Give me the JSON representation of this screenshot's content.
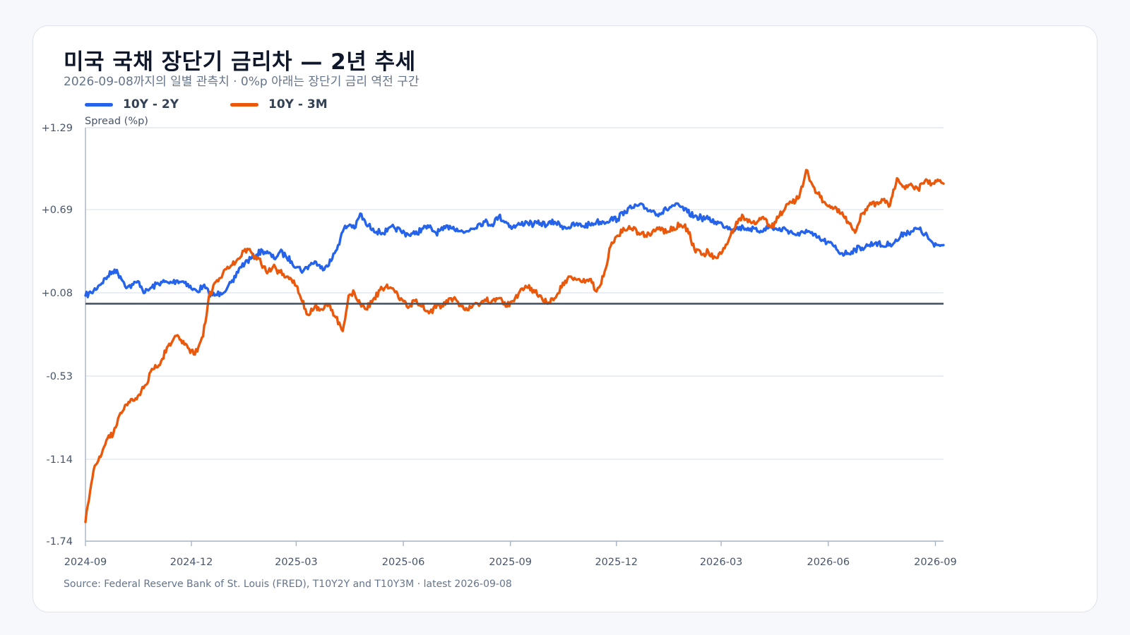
{
  "header": {
    "title": "미국 국채 장단기 금리차 — 2년 추세",
    "subtitle": "2026-09-08까지의 일별 관측치 · 0%p 아래는 장단기 금리 역전 구간"
  },
  "source": "Source: Federal Reserve Bank of St. Louis (FRED), T10Y2Y and T10Y3M · latest 2026-09-08",
  "colors": {
    "series_10y2y": "#2563eb",
    "series_10y3m": "#ea580c",
    "zero_line": "#475569",
    "grid": "#dbe3ee",
    "axis": "#a8b4c4"
  },
  "chart_data": {
    "type": "line",
    "ylabel": "Spread (%p)",
    "xlabel": "",
    "ylim": [
      -1.74,
      1.29
    ],
    "yticks": [
      "+1.29",
      "+0.69",
      "+0.08",
      "-0.53",
      "-1.14",
      "-1.74"
    ],
    "ytick_values": [
      1.29,
      0.69,
      0.08,
      -0.53,
      -1.14,
      -1.74
    ],
    "xlim": [
      "2024-09-01",
      "2026-09-08"
    ],
    "xticks": [
      "2024-09",
      "2024-12",
      "2025-03",
      "2025-06",
      "2025-09",
      "2025-12",
      "2026-03",
      "2026-06",
      "2026-09"
    ],
    "xtick_dates": [
      "2024-09-01",
      "2024-12-01",
      "2025-03-01",
      "2025-06-01",
      "2025-09-01",
      "2025-12-01",
      "2026-03-01",
      "2026-06-01",
      "2026-09-01"
    ],
    "reference_line": 0,
    "grid": "horizontal",
    "legend_position": "top-left",
    "series": [
      {
        "name": "10Y - 2Y",
        "points": [
          [
            "2024-09-01",
            0.06
          ],
          [
            "2024-09-06",
            0.08
          ],
          [
            "2024-09-12",
            0.13
          ],
          [
            "2024-09-20",
            0.2
          ],
          [
            "2024-09-26",
            0.25
          ],
          [
            "2024-10-01",
            0.2
          ],
          [
            "2024-10-07",
            0.12
          ],
          [
            "2024-10-12",
            0.14
          ],
          [
            "2024-10-17",
            0.16
          ],
          [
            "2024-10-22",
            0.08
          ],
          [
            "2024-10-28",
            0.12
          ],
          [
            "2024-11-05",
            0.16
          ],
          [
            "2024-11-12",
            0.15
          ],
          [
            "2024-11-19",
            0.17
          ],
          [
            "2024-11-26",
            0.16
          ],
          [
            "2024-12-01",
            0.11
          ],
          [
            "2024-12-06",
            0.09
          ],
          [
            "2024-12-11",
            0.13
          ],
          [
            "2024-12-16",
            0.08
          ],
          [
            "2024-12-21",
            0.06
          ],
          [
            "2024-12-26",
            0.08
          ],
          [
            "2025-01-01",
            0.12
          ],
          [
            "2025-01-06",
            0.16
          ],
          [
            "2025-01-11",
            0.26
          ],
          [
            "2025-01-16",
            0.3
          ],
          [
            "2025-01-21",
            0.33
          ],
          [
            "2025-01-26",
            0.36
          ],
          [
            "2025-01-31",
            0.39
          ],
          [
            "2025-02-05",
            0.37
          ],
          [
            "2025-02-10",
            0.33
          ],
          [
            "2025-02-15",
            0.38
          ],
          [
            "2025-02-20",
            0.35
          ],
          [
            "2025-02-25",
            0.31
          ],
          [
            "2025-03-02",
            0.27
          ],
          [
            "2025-03-07",
            0.24
          ],
          [
            "2025-03-12",
            0.28
          ],
          [
            "2025-03-17",
            0.31
          ],
          [
            "2025-03-22",
            0.26
          ],
          [
            "2025-03-27",
            0.28
          ],
          [
            "2025-04-01",
            0.33
          ],
          [
            "2025-04-06",
            0.43
          ],
          [
            "2025-04-11",
            0.55
          ],
          [
            "2025-04-16",
            0.58
          ],
          [
            "2025-04-21",
            0.56
          ],
          [
            "2025-04-25",
            0.66
          ],
          [
            "2025-04-30",
            0.58
          ],
          [
            "2025-05-06",
            0.55
          ],
          [
            "2025-05-12",
            0.52
          ],
          [
            "2025-05-18",
            0.53
          ],
          [
            "2025-05-24",
            0.56
          ],
          [
            "2025-05-30",
            0.53
          ],
          [
            "2025-06-05",
            0.51
          ],
          [
            "2025-06-11",
            0.51
          ],
          [
            "2025-06-17",
            0.55
          ],
          [
            "2025-06-23",
            0.56
          ],
          [
            "2025-06-29",
            0.52
          ],
          [
            "2025-07-05",
            0.54
          ],
          [
            "2025-07-11",
            0.57
          ],
          [
            "2025-07-17",
            0.55
          ],
          [
            "2025-07-23",
            0.52
          ],
          [
            "2025-07-29",
            0.55
          ],
          [
            "2025-08-04",
            0.58
          ],
          [
            "2025-08-10",
            0.6
          ],
          [
            "2025-08-16",
            0.58
          ],
          [
            "2025-08-22",
            0.64
          ],
          [
            "2025-08-28",
            0.6
          ],
          [
            "2025-09-03",
            0.56
          ],
          [
            "2025-09-09",
            0.58
          ],
          [
            "2025-09-15",
            0.6
          ],
          [
            "2025-09-21",
            0.58
          ],
          [
            "2025-09-27",
            0.59
          ],
          [
            "2025-10-03",
            0.58
          ],
          [
            "2025-10-09",
            0.6
          ],
          [
            "2025-10-15",
            0.57
          ],
          [
            "2025-10-21",
            0.56
          ],
          [
            "2025-10-27",
            0.58
          ],
          [
            "2025-11-02",
            0.57
          ],
          [
            "2025-11-08",
            0.58
          ],
          [
            "2025-11-14",
            0.6
          ],
          [
            "2025-11-20",
            0.6
          ],
          [
            "2025-11-26",
            0.62
          ],
          [
            "2025-12-02",
            0.62
          ],
          [
            "2025-12-08",
            0.68
          ],
          [
            "2025-12-14",
            0.7
          ],
          [
            "2025-12-20",
            0.72
          ],
          [
            "2025-12-26",
            0.7
          ],
          [
            "2026-01-01",
            0.68
          ],
          [
            "2026-01-07",
            0.66
          ],
          [
            "2026-01-13",
            0.69
          ],
          [
            "2026-01-19",
            0.72
          ],
          [
            "2026-01-25",
            0.71
          ],
          [
            "2026-01-31",
            0.67
          ],
          [
            "2026-02-06",
            0.64
          ],
          [
            "2026-02-12",
            0.63
          ],
          [
            "2026-02-18",
            0.62
          ],
          [
            "2026-02-24",
            0.6
          ],
          [
            "2026-03-02",
            0.58
          ],
          [
            "2026-03-08",
            0.56
          ],
          [
            "2026-03-14",
            0.55
          ],
          [
            "2026-03-20",
            0.56
          ],
          [
            "2026-03-26",
            0.55
          ],
          [
            "2026-04-01",
            0.53
          ],
          [
            "2026-04-07",
            0.55
          ],
          [
            "2026-04-13",
            0.56
          ],
          [
            "2026-04-19",
            0.54
          ],
          [
            "2026-04-25",
            0.55
          ],
          [
            "2026-05-01",
            0.52
          ],
          [
            "2026-05-07",
            0.5
          ],
          [
            "2026-05-13",
            0.54
          ],
          [
            "2026-05-19",
            0.5
          ],
          [
            "2026-05-25",
            0.47
          ],
          [
            "2026-05-31",
            0.45
          ],
          [
            "2026-06-06",
            0.42
          ],
          [
            "2026-06-12",
            0.37
          ],
          [
            "2026-06-18",
            0.37
          ],
          [
            "2026-06-24",
            0.4
          ],
          [
            "2026-06-30",
            0.41
          ],
          [
            "2026-07-06",
            0.43
          ],
          [
            "2026-07-12",
            0.45
          ],
          [
            "2026-07-18",
            0.42
          ],
          [
            "2026-07-24",
            0.44
          ],
          [
            "2026-07-30",
            0.46
          ],
          [
            "2026-08-05",
            0.52
          ],
          [
            "2026-08-11",
            0.53
          ],
          [
            "2026-08-17",
            0.55
          ],
          [
            "2026-08-23",
            0.51
          ],
          [
            "2026-08-27",
            0.47
          ],
          [
            "2026-08-31",
            0.42
          ],
          [
            "2026-09-04",
            0.43
          ],
          [
            "2026-09-08",
            0.43
          ]
        ]
      },
      {
        "name": "10Y - 3M",
        "points": [
          [
            "2024-09-01",
            -1.6
          ],
          [
            "2024-09-04",
            -1.44
          ],
          [
            "2024-09-08",
            -1.22
          ],
          [
            "2024-09-13",
            -1.12
          ],
          [
            "2024-09-19",
            -1.0
          ],
          [
            "2024-09-25",
            -0.95
          ],
          [
            "2024-10-01",
            -0.8
          ],
          [
            "2024-10-08",
            -0.72
          ],
          [
            "2024-10-15",
            -0.7
          ],
          [
            "2024-10-22",
            -0.6
          ],
          [
            "2024-10-29",
            -0.48
          ],
          [
            "2024-11-05",
            -0.42
          ],
          [
            "2024-11-10",
            -0.32
          ],
          [
            "2024-11-15",
            -0.27
          ],
          [
            "2024-11-20",
            -0.24
          ],
          [
            "2024-11-25",
            -0.3
          ],
          [
            "2024-11-30",
            -0.36
          ],
          [
            "2024-12-06",
            -0.35
          ],
          [
            "2024-12-11",
            -0.24
          ],
          [
            "2024-12-16",
            0.05
          ],
          [
            "2024-12-22",
            0.16
          ],
          [
            "2024-12-28",
            0.22
          ],
          [
            "2025-01-04",
            0.28
          ],
          [
            "2025-01-10",
            0.33
          ],
          [
            "2025-01-16",
            0.4
          ],
          [
            "2025-01-22",
            0.37
          ],
          [
            "2025-01-28",
            0.33
          ],
          [
            "2025-02-03",
            0.24
          ],
          [
            "2025-02-09",
            0.27
          ],
          [
            "2025-02-15",
            0.23
          ],
          [
            "2025-02-21",
            0.2
          ],
          [
            "2025-02-27",
            0.17
          ],
          [
            "2025-03-05",
            0.04
          ],
          [
            "2025-03-11",
            -0.08
          ],
          [
            "2025-03-17",
            -0.02
          ],
          [
            "2025-03-23",
            -0.04
          ],
          [
            "2025-03-29",
            0.0
          ],
          [
            "2025-04-04",
            -0.1
          ],
          [
            "2025-04-10",
            -0.2
          ],
          [
            "2025-04-15",
            0.06
          ],
          [
            "2025-04-20",
            0.08
          ],
          [
            "2025-04-25",
            0.0
          ],
          [
            "2025-04-30",
            -0.04
          ],
          [
            "2025-05-06",
            0.03
          ],
          [
            "2025-05-12",
            0.1
          ],
          [
            "2025-05-18",
            0.14
          ],
          [
            "2025-05-24",
            0.1
          ],
          [
            "2025-05-30",
            0.04
          ],
          [
            "2025-06-05",
            -0.03
          ],
          [
            "2025-06-11",
            0.02
          ],
          [
            "2025-06-17",
            -0.02
          ],
          [
            "2025-06-23",
            -0.07
          ],
          [
            "2025-06-29",
            -0.03
          ],
          [
            "2025-07-05",
            -0.02
          ],
          [
            "2025-07-11",
            0.04
          ],
          [
            "2025-07-17",
            0.02
          ],
          [
            "2025-07-23",
            -0.04
          ],
          [
            "2025-07-29",
            -0.03
          ],
          [
            "2025-08-04",
            0.0
          ],
          [
            "2025-08-10",
            0.03
          ],
          [
            "2025-08-16",
            0.02
          ],
          [
            "2025-08-22",
            0.04
          ],
          [
            "2025-08-28",
            -0.02
          ],
          [
            "2025-09-03",
            0.02
          ],
          [
            "2025-09-09",
            0.09
          ],
          [
            "2025-09-15",
            0.12
          ],
          [
            "2025-09-21",
            0.1
          ],
          [
            "2025-09-27",
            0.06
          ],
          [
            "2025-10-03",
            0.0
          ],
          [
            "2025-10-09",
            0.04
          ],
          [
            "2025-10-15",
            0.12
          ],
          [
            "2025-10-21",
            0.2
          ],
          [
            "2025-10-27",
            0.18
          ],
          [
            "2025-11-02",
            0.16
          ],
          [
            "2025-11-08",
            0.18
          ],
          [
            "2025-11-14",
            0.09
          ],
          [
            "2025-11-20",
            0.2
          ],
          [
            "2025-11-26",
            0.42
          ],
          [
            "2025-12-02",
            0.5
          ],
          [
            "2025-12-08",
            0.54
          ],
          [
            "2025-12-14",
            0.55
          ],
          [
            "2025-12-20",
            0.52
          ],
          [
            "2025-12-26",
            0.5
          ],
          [
            "2026-01-01",
            0.53
          ],
          [
            "2026-01-07",
            0.56
          ],
          [
            "2026-01-13",
            0.52
          ],
          [
            "2026-01-19",
            0.56
          ],
          [
            "2026-01-25",
            0.58
          ],
          [
            "2026-01-31",
            0.55
          ],
          [
            "2026-02-06",
            0.4
          ],
          [
            "2026-02-12",
            0.36
          ],
          [
            "2026-02-18",
            0.38
          ],
          [
            "2026-02-24",
            0.34
          ],
          [
            "2026-03-02",
            0.38
          ],
          [
            "2026-03-08",
            0.48
          ],
          [
            "2026-03-14",
            0.6
          ],
          [
            "2026-03-20",
            0.64
          ],
          [
            "2026-03-26",
            0.6
          ],
          [
            "2026-04-01",
            0.6
          ],
          [
            "2026-04-07",
            0.62
          ],
          [
            "2026-04-13",
            0.56
          ],
          [
            "2026-04-19",
            0.63
          ],
          [
            "2026-04-25",
            0.7
          ],
          [
            "2026-05-01",
            0.74
          ],
          [
            "2026-05-07",
            0.78
          ],
          [
            "2026-05-13",
            0.98
          ],
          [
            "2026-05-19",
            0.86
          ],
          [
            "2026-05-25",
            0.78
          ],
          [
            "2026-05-31",
            0.72
          ],
          [
            "2026-06-06",
            0.7
          ],
          [
            "2026-06-12",
            0.66
          ],
          [
            "2026-06-18",
            0.6
          ],
          [
            "2026-06-24",
            0.52
          ],
          [
            "2026-06-30",
            0.66
          ],
          [
            "2026-07-06",
            0.72
          ],
          [
            "2026-07-12",
            0.74
          ],
          [
            "2026-07-18",
            0.76
          ],
          [
            "2026-07-24",
            0.72
          ],
          [
            "2026-07-30",
            0.92
          ],
          [
            "2026-08-05",
            0.86
          ],
          [
            "2026-08-11",
            0.88
          ],
          [
            "2026-08-17",
            0.84
          ],
          [
            "2026-08-23",
            0.9
          ],
          [
            "2026-08-29",
            0.88
          ],
          [
            "2026-09-04",
            0.9
          ],
          [
            "2026-09-08",
            0.88
          ]
        ]
      }
    ]
  }
}
